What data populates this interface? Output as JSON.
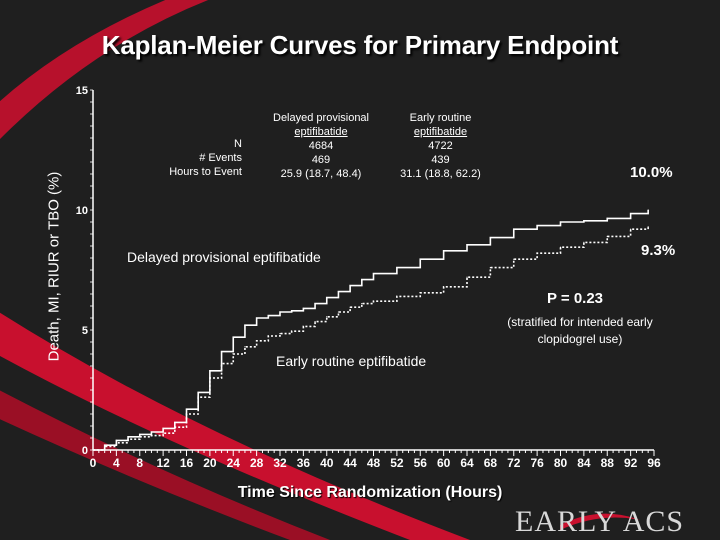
{
  "slide": {
    "title": "Kaplan-Meier Curves for Primary Endpoint",
    "logo": "EARLY ACS"
  },
  "table": {
    "row_labels": [
      "N",
      "# Events",
      "Hours to Event"
    ],
    "col1": {
      "header_line1": "Delayed provisional",
      "header_line2": "eptifibatide",
      "values": [
        "4684",
        "469",
        "25.9 (18.7, 48.4)"
      ]
    },
    "col2": {
      "header_line1": "Early routine",
      "header_line2": "eptifibatide",
      "values": [
        "4722",
        "439",
        "31.1 (18.8, 62.2)"
      ]
    }
  },
  "annotations": {
    "delayed_label": "Delayed provisional eptifibatide",
    "early_label": "Early routine eptifibatide",
    "delayed_end": "10.0%",
    "early_end": "9.3%",
    "p_value": "P = 0.23",
    "p_note_line1": "(stratified for intended early",
    "p_note_line2": "clopidogrel use)"
  },
  "colors": {
    "background": "#1f1f1f",
    "swoosh": "#c8102e",
    "curve": "#ffffff"
  },
  "chart_data": {
    "type": "line",
    "title": "Kaplan-Meier Curves for Primary Endpoint",
    "xlabel": "Time Since Randomization (Hours)",
    "ylabel": "Death, MI, RIUR or TBO (%)",
    "xlim": [
      0,
      96
    ],
    "ylim": [
      0,
      15
    ],
    "x_ticks": [
      0,
      4,
      8,
      12,
      16,
      20,
      24,
      28,
      32,
      36,
      40,
      44,
      48,
      52,
      56,
      60,
      64,
      68,
      72,
      76,
      80,
      84,
      88,
      92,
      96
    ],
    "y_ticks": [
      0,
      5,
      10,
      15
    ],
    "grid": false,
    "series": [
      {
        "name": "Delayed provisional eptifibatide",
        "style": "solid",
        "x": [
          0,
          2,
          4,
          6,
          8,
          10,
          12,
          14,
          16,
          18,
          20,
          22,
          24,
          26,
          28,
          30,
          32,
          34,
          36,
          38,
          40,
          42,
          44,
          46,
          48,
          52,
          56,
          60,
          64,
          68,
          72,
          76,
          80,
          84,
          88,
          92,
          95
        ],
        "y": [
          0,
          0.2,
          0.4,
          0.55,
          0.65,
          0.75,
          0.9,
          1.15,
          1.7,
          2.4,
          3.3,
          4.1,
          4.7,
          5.2,
          5.5,
          5.6,
          5.75,
          5.8,
          5.9,
          6.1,
          6.35,
          6.6,
          6.85,
          7.1,
          7.35,
          7.6,
          7.95,
          8.3,
          8.55,
          8.85,
          9.2,
          9.35,
          9.5,
          9.55,
          9.65,
          9.85,
          10.0
        ]
      },
      {
        "name": "Early routine eptifibatide",
        "style": "dotted",
        "x": [
          0,
          2,
          4,
          6,
          8,
          10,
          12,
          14,
          16,
          18,
          20,
          22,
          24,
          26,
          28,
          30,
          32,
          34,
          36,
          38,
          40,
          42,
          44,
          46,
          48,
          52,
          56,
          60,
          64,
          68,
          72,
          76,
          80,
          84,
          88,
          92,
          95
        ],
        "y": [
          0,
          0.15,
          0.3,
          0.45,
          0.55,
          0.6,
          0.7,
          0.95,
          1.5,
          2.2,
          3.0,
          3.6,
          4.0,
          4.3,
          4.55,
          4.75,
          4.85,
          4.95,
          5.15,
          5.35,
          5.55,
          5.75,
          5.95,
          6.1,
          6.2,
          6.4,
          6.55,
          6.8,
          7.2,
          7.6,
          7.95,
          8.2,
          8.45,
          8.65,
          8.9,
          9.2,
          9.3
        ]
      }
    ]
  }
}
